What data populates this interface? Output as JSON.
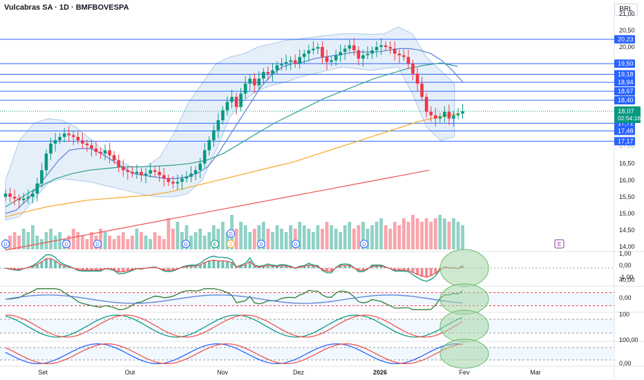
{
  "header": {
    "title": "Vulcabras SA · 1D · BMFBOVESPA",
    "currency": "BRL"
  },
  "price_axis": {
    "ticks": [
      "21,00",
      "20,50",
      "20,00",
      "19,00",
      "18,50",
      "16,50",
      "16,00",
      "15,50",
      "15,00",
      "14,50",
      "14,00"
    ],
    "level_labels": [
      {
        "text": "20,23",
        "value": 20.23
      },
      {
        "text": "19,50",
        "value": 19.5
      },
      {
        "text": "19,18",
        "value": 19.18
      },
      {
        "text": "18,94",
        "value": 18.94
      },
      {
        "text": "18,67",
        "value": 18.67
      },
      {
        "text": "18,40",
        "value": 18.4
      },
      {
        "text": "17,71",
        "value": 17.71
      },
      {
        "text": "17,48",
        "value": 17.48
      },
      {
        "text": "17,17",
        "value": 17.17
      }
    ],
    "last_price": "18,07",
    "countdown": "02:54:16",
    "partial_labels": [
      "17,50",
      "17,00"
    ]
  },
  "time_axis": [
    "Set",
    "Out",
    "Nov",
    "Dez",
    "2026",
    "Fev",
    "Mar"
  ],
  "colors": {
    "up": "#089981",
    "down": "#f23645",
    "level": "#2962ff",
    "ma_fast": "#5b7fd6",
    "ma_mid": "#2f9e8f",
    "ma_slow": "#f5a623",
    "ma_long": "#ef5350",
    "band": "#aac9ec",
    "highlight": "#a5d6a7"
  },
  "chart_data": {
    "type": "candlestick",
    "title": "Vulcabras SA · 1D · BMFBOVESPA",
    "ylim": [
      13.9,
      21.1
    ],
    "horizontal_levels": [
      20.23,
      19.5,
      19.18,
      18.94,
      18.67,
      18.4,
      17.71,
      17.48,
      17.17
    ],
    "closes": [
      15.6,
      15.5,
      15.45,
      15.4,
      15.45,
      15.5,
      15.6,
      15.9,
      16.3,
      16.8,
      17.1,
      17.2,
      17.3,
      17.4,
      17.35,
      17.3,
      17.2,
      17.1,
      17.05,
      16.95,
      16.85,
      16.8,
      16.9,
      16.75,
      16.6,
      16.4,
      16.3,
      16.25,
      16.2,
      16.25,
      16.15,
      16.2,
      16.3,
      16.25,
      16.15,
      16.05,
      15.95,
      15.9,
      15.95,
      16.05,
      16.1,
      16.2,
      16.3,
      16.5,
      16.9,
      17.2,
      17.5,
      17.8,
      18.1,
      18.35,
      18.5,
      18.2,
      18.6,
      18.9,
      19.05,
      18.85,
      19.05,
      19.25,
      19.2,
      19.3,
      19.45,
      19.5,
      19.55,
      19.6,
      19.5,
      19.7,
      19.8,
      19.9,
      19.95,
      20.0,
      19.7,
      19.55,
      19.6,
      19.75,
      19.85,
      19.95,
      20.05,
      19.9,
      19.65,
      19.75,
      19.8,
      19.9,
      20.0,
      20.05,
      20.0,
      19.95,
      19.8,
      19.75,
      19.7,
      19.5,
      19.2,
      18.9,
      18.5,
      18.05,
      17.95,
      17.85,
      17.9,
      18.05,
      17.85,
      17.95,
      18.0,
      18.07
    ],
    "series": [
      {
        "name": "Bollinger upper",
        "start": 0,
        "values": [
          16.0,
          17.2,
          17.7,
          17.85,
          17.8,
          17.6,
          17.25,
          16.9,
          16.6,
          16.4,
          16.4,
          16.7,
          17.4,
          18.3,
          18.9,
          19.5,
          19.7,
          19.8,
          20.0,
          20.1,
          20.2,
          20.25,
          20.3,
          20.35,
          20.4,
          20.4,
          20.38,
          20.4,
          20.6,
          20.4,
          19.7,
          19.3,
          18.9
        ]
      },
      {
        "name": "Bollinger lower",
        "start": 0,
        "values": [
          14.8,
          14.9,
          15.4,
          15.9,
          16.05,
          16.0,
          15.95,
          15.85,
          15.75,
          15.65,
          15.55,
          15.5,
          15.5,
          15.6,
          16.0,
          16.9,
          17.9,
          18.4,
          18.7,
          18.85,
          18.95,
          19.1,
          19.2,
          19.3,
          19.4,
          19.35,
          19.3,
          19.35,
          19.4,
          18.6,
          17.6,
          17.2,
          17.3
        ]
      },
      {
        "name": "Média curta",
        "start": 0,
        "values": [
          15.0,
          15.1,
          15.4,
          15.8,
          16.2,
          16.6,
          16.9,
          16.95,
          16.95,
          16.8,
          16.6,
          16.4,
          16.2,
          16.15,
          16.1,
          16.05,
          16.05,
          16.1,
          16.2,
          16.4,
          16.8,
          17.3,
          17.8,
          18.3,
          18.8,
          19.15,
          19.4,
          19.5,
          19.55,
          19.65,
          19.7,
          19.75,
          19.8,
          19.85,
          19.85,
          19.85,
          19.9,
          19.95,
          19.95,
          19.9,
          19.8,
          19.6,
          19.3,
          18.95,
          18.65
        ]
      },
      {
        "name": "Média intermediária",
        "start": 0,
        "values": [
          15.2,
          15.5,
          15.8,
          16.05,
          16.2,
          16.3,
          16.35,
          16.4,
          16.4,
          16.42,
          16.45,
          16.5,
          16.6,
          16.8,
          17.1,
          17.4,
          17.7,
          17.95,
          18.2,
          18.45,
          18.65,
          18.85,
          19.05,
          19.2,
          19.35,
          19.45,
          19.52,
          19.42,
          19.25
        ]
      },
      {
        "name": "Média lenta",
        "start": 0,
        "values": [
          14.9,
          15.05,
          15.2,
          15.3,
          15.4,
          15.45,
          15.5,
          15.55,
          15.65,
          15.8,
          15.95,
          16.1,
          16.25,
          16.4,
          16.55,
          16.75,
          16.95,
          17.15,
          17.35,
          17.55,
          17.75,
          17.9,
          18.0,
          18.05
        ]
      },
      {
        "name": "Média longa",
        "start": 0,
        "values": [
          13.9,
          14.1,
          14.3,
          14.5,
          14.7,
          14.9,
          15.1,
          15.3,
          15.5,
          15.7,
          15.9,
          16.1,
          16.3,
          16.5
        ]
      }
    ],
    "volume": [
      3,
      4,
      5,
      4,
      6,
      5,
      7,
      4,
      3,
      5,
      6,
      4,
      5,
      3,
      4,
      6,
      5,
      4,
      3,
      5,
      4,
      6,
      5,
      4,
      3,
      4,
      5,
      3,
      4,
      6,
      5,
      4,
      3,
      5,
      4,
      3,
      9,
      6,
      8,
      5,
      7,
      4,
      5,
      6,
      4,
      5,
      7,
      6,
      8,
      5,
      10,
      6,
      8,
      7,
      5,
      6,
      7,
      8,
      6,
      5,
      7,
      6,
      5,
      7,
      6,
      8,
      7,
      6,
      5,
      7,
      6,
      8,
      7,
      6,
      5,
      7,
      8,
      6,
      7,
      8,
      6,
      7,
      8,
      9,
      7,
      6,
      8,
      7,
      9,
      8,
      10,
      9,
      8,
      9,
      8,
      9,
      10,
      9,
      8,
      9,
      8,
      7
    ]
  },
  "markers": {
    "dividend": "D",
    "earnings": "E",
    "split": "S",
    "future_event": "E"
  },
  "oscillators": [
    {
      "name": "Painel 1",
      "ticks": [
        "1,00",
        "0,00",
        "-1,00"
      ]
    },
    {
      "name": "Painel 2",
      "ticks": [
        "40,00",
        "0,00"
      ]
    },
    {
      "name": "Painel 3",
      "ticks": [
        "100",
        "0"
      ]
    },
    {
      "name": "Painel 4",
      "ticks": [
        "100,00",
        "0,00"
      ]
    }
  ]
}
